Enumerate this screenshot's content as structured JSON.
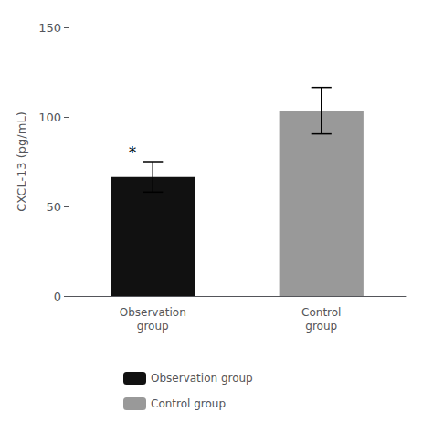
{
  "chart_data": {
    "type": "bar",
    "categories": [
      "Observation\ngroup",
      "Control\ngroup"
    ],
    "series": [
      {
        "name": "Observation group",
        "color": "#111111",
        "values": [
          66.5,
          null
        ],
        "errors": [
          8.5,
          null
        ]
      },
      {
        "name": "Control group",
        "color": "#999999",
        "values": [
          null,
          103.5
        ],
        "errors": [
          null,
          13.0
        ]
      }
    ],
    "ylabel": "CXCL-13 (pg/mL)",
    "ylim": [
      0,
      150
    ],
    "yticks": [
      0,
      50,
      100,
      150
    ],
    "annotation": "*",
    "grid": false,
    "legend": "bottom"
  }
}
